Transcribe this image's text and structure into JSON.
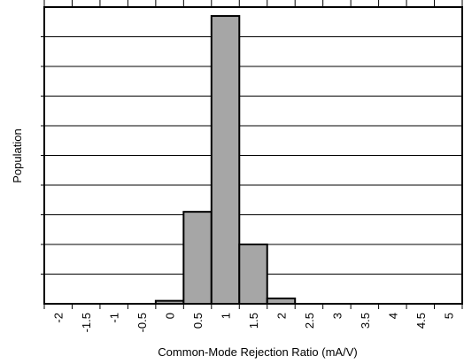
{
  "chart_data": {
    "type": "bar",
    "title": "",
    "xlabel": "Common-Mode Rejection Ratio (mA/V)",
    "ylabel": "Population",
    "categories": [
      "-2",
      "-1.5",
      "-1",
      "-0.5",
      "0",
      "0.5",
      "1",
      "1.5",
      "2",
      "2.5",
      "3",
      "3.5",
      "4",
      "4.5",
      "5"
    ],
    "values": [
      0,
      0,
      0,
      0,
      1,
      31,
      97,
      20,
      1.8,
      0,
      0,
      0,
      0,
      0,
      0
    ],
    "ylim": [
      0,
      100
    ],
    "ytick_count": 10,
    "grid": "horizontal",
    "bar_color": "#a6a6a6",
    "bar_edge_color": "#000000"
  }
}
